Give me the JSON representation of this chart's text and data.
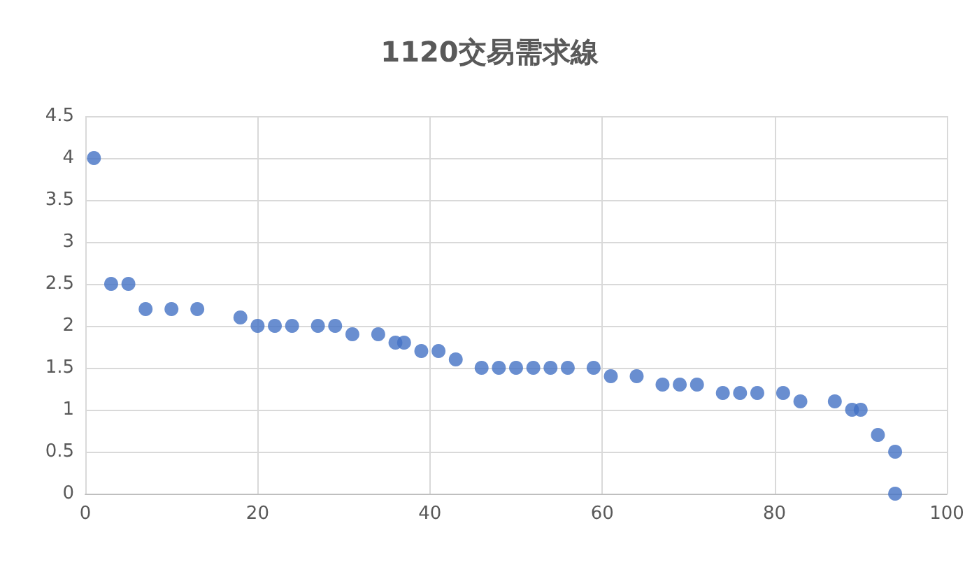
{
  "chart_data": {
    "type": "scatter",
    "title": "1120交易需求線",
    "x": [
      1,
      3,
      5,
      7,
      10,
      13,
      18,
      20,
      22,
      24,
      27,
      29,
      31,
      34,
      36,
      37,
      39,
      41,
      43,
      46,
      48,
      50,
      52,
      54,
      56,
      59,
      61,
      64,
      67,
      69,
      71,
      74,
      76,
      78,
      81,
      83,
      87,
      89,
      90,
      92,
      94,
      94
    ],
    "values": [
      4,
      2.5,
      2.5,
      2.2,
      2.2,
      2.2,
      2.1,
      2,
      2,
      2,
      2,
      2,
      1.9,
      1.9,
      1.8,
      1.8,
      1.7,
      1.7,
      1.6,
      1.5,
      1.5,
      1.5,
      1.5,
      1.5,
      1.5,
      1.5,
      1.4,
      1.4,
      1.3,
      1.3,
      1.3,
      1.2,
      1.2,
      1.2,
      1.2,
      1.1,
      1.1,
      1,
      1,
      0.7,
      0.5,
      0
    ],
    "color": "#4472c4",
    "marker": "circle",
    "xlim": [
      0,
      100
    ],
    "xticks": [
      0,
      20,
      40,
      60,
      80,
      100
    ],
    "ylim": [
      0,
      4.5
    ],
    "yticks": [
      0,
      0.5,
      1,
      1.5,
      2,
      2.5,
      3,
      3.5,
      4,
      4.5
    ],
    "grid": true
  }
}
